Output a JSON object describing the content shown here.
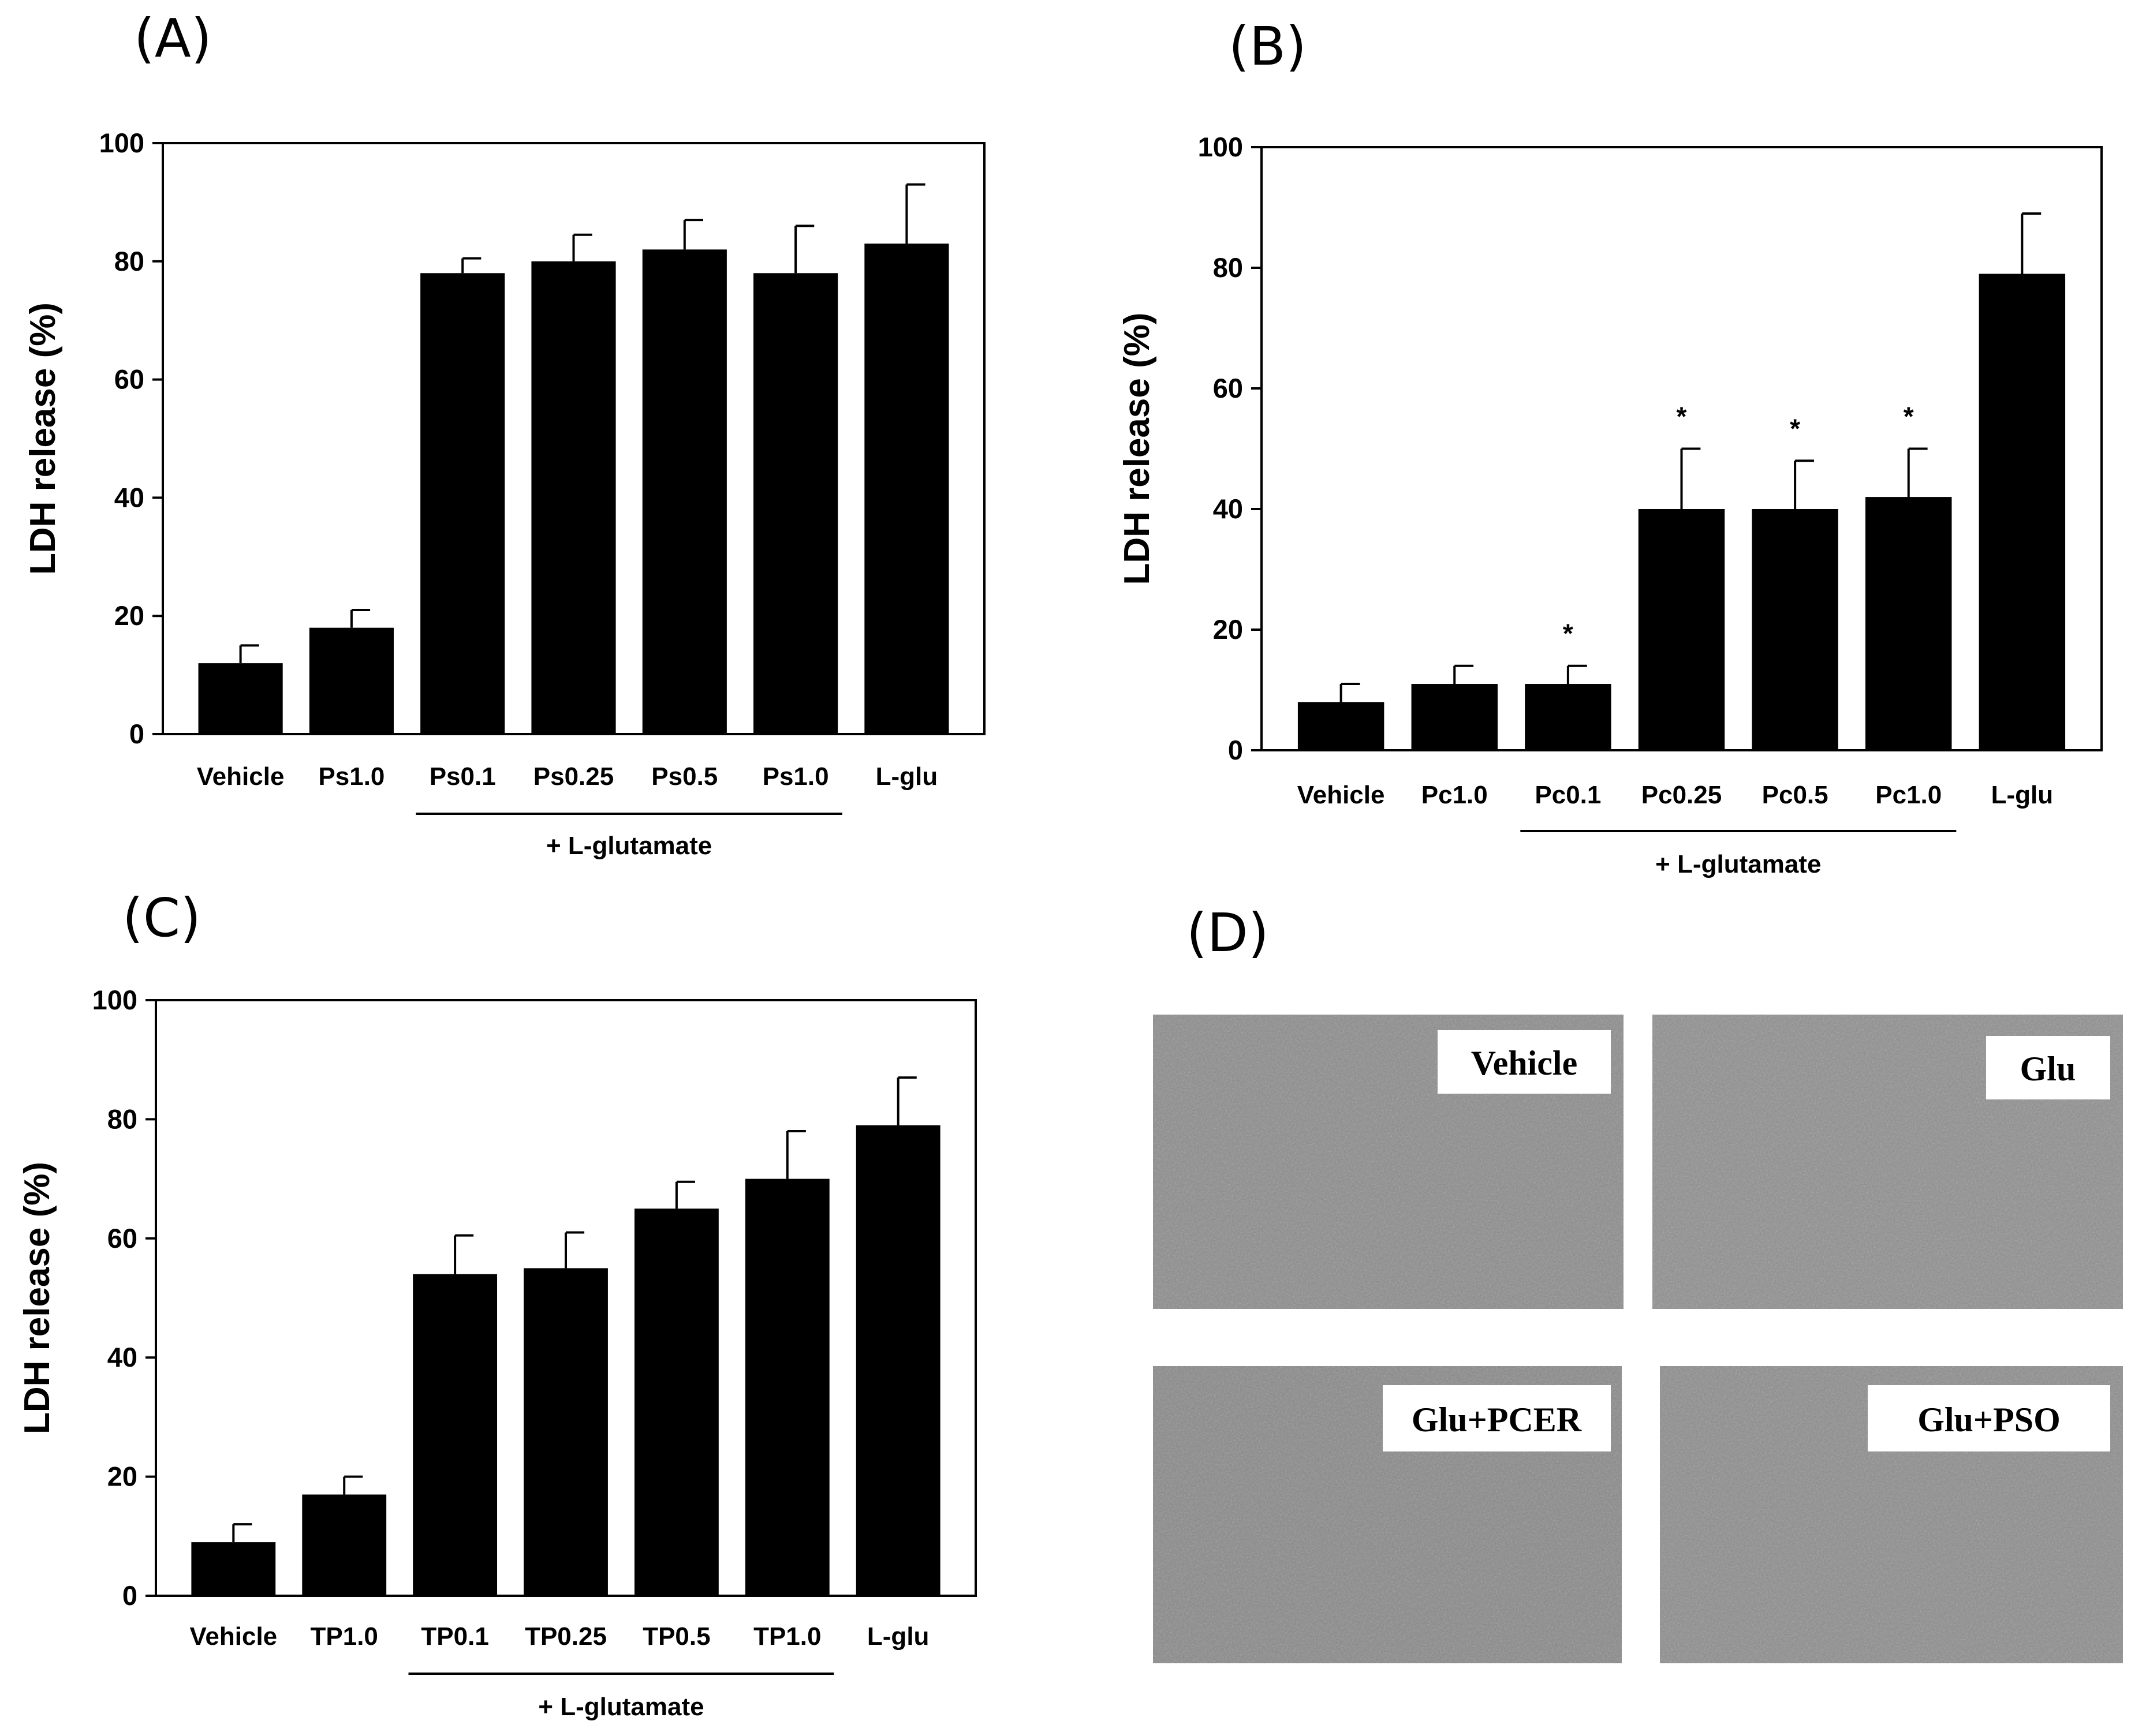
{
  "panels": {
    "A": {
      "letter": "(A)"
    },
    "B": {
      "letter": "(B)"
    },
    "C": {
      "letter": "(C)"
    },
    "D": {
      "letter": "(D)"
    }
  },
  "chart_data": [
    {
      "id": "A",
      "type": "bar",
      "title": "",
      "xlabel": "",
      "ylabel": "LDH release (%)",
      "ylim": [
        0,
        100
      ],
      "yticks": [
        0,
        20,
        40,
        60,
        80,
        100
      ],
      "categories": [
        "Vehicle",
        "Ps1.0",
        "Ps0.1",
        "Ps0.25",
        "Ps0.5",
        "Ps1.0",
        "L-glu"
      ],
      "values": [
        12,
        18,
        78,
        80,
        82,
        78,
        83
      ],
      "errors": [
        3,
        3,
        2.5,
        4.5,
        5,
        8,
        10
      ],
      "significance": [
        "",
        "",
        "",
        "",
        "",
        "",
        ""
      ],
      "group_label": "+ L-glutamate",
      "group_range": [
        2,
        5
      ],
      "bar_color": "#000000",
      "grid": false
    },
    {
      "id": "B",
      "type": "bar",
      "title": "",
      "xlabel": "",
      "ylabel": "LDH release (%)",
      "ylim": [
        0,
        100
      ],
      "yticks": [
        0,
        20,
        40,
        60,
        80,
        100
      ],
      "categories": [
        "Vehicle",
        "Pc1.0",
        "Pc0.1",
        "Pc0.25",
        "Pc0.5",
        "Pc1.0",
        "L-glu"
      ],
      "values": [
        8,
        11,
        11,
        40,
        40,
        42,
        79
      ],
      "errors": [
        3,
        3,
        3,
        10,
        8,
        8,
        10
      ],
      "significance": [
        "",
        "",
        "*",
        "*",
        "*",
        "*",
        ""
      ],
      "group_label": "+ L-glutamate",
      "group_range": [
        2,
        5
      ],
      "bar_color": "#000000",
      "grid": false
    },
    {
      "id": "C",
      "type": "bar",
      "title": "",
      "xlabel": "",
      "ylabel": "LDH release (%)",
      "ylim": [
        0,
        100
      ],
      "yticks": [
        0,
        20,
        40,
        60,
        80,
        100
      ],
      "categories": [
        "Vehicle",
        "TP1.0",
        "TP0.1",
        "TP0.25",
        "TP0.5",
        "TP1.0",
        "L-glu"
      ],
      "values": [
        9,
        17,
        54,
        55,
        65,
        70,
        79
      ],
      "errors": [
        3,
        3,
        6.5,
        6,
        4.5,
        8,
        8
      ],
      "significance": [
        "",
        "",
        "",
        "",
        "",
        "",
        ""
      ],
      "group_label": "+ L-glutamate",
      "group_range": [
        2,
        5
      ],
      "bar_color": "#000000",
      "grid": false
    }
  ],
  "micrographs": [
    {
      "label": "Vehicle"
    },
    {
      "label": "Glu"
    },
    {
      "label": "Glu+PCER"
    },
    {
      "label": "Glu+PSO"
    }
  ]
}
